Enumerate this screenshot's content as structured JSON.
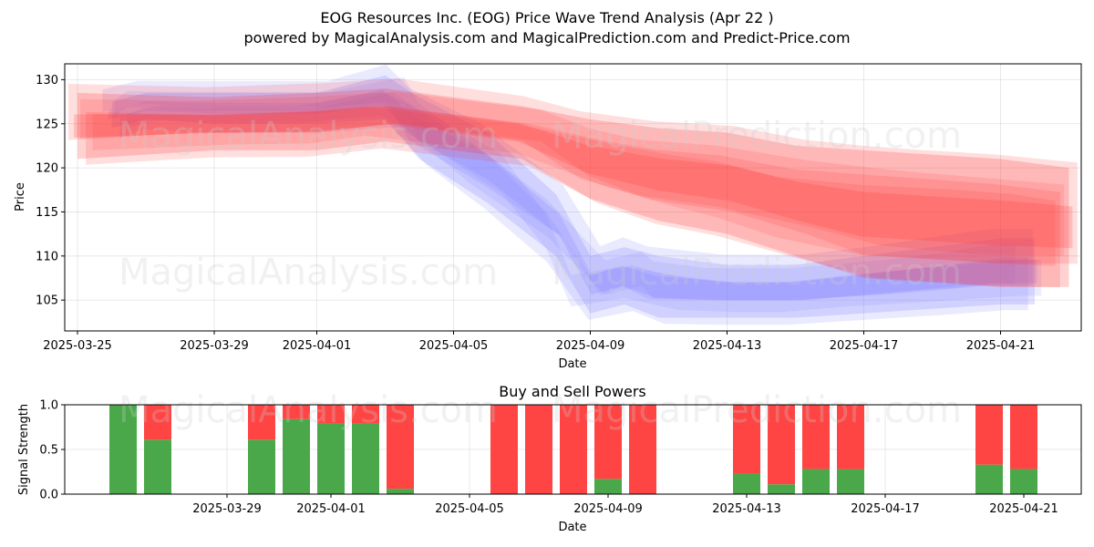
{
  "title": "EOG Resources Inc. (EOG) Price Wave Trend Analysis (Apr 22 )",
  "subtitle": "powered by MagicalAnalysis.com and MagicalPrediction.com and Predict-Price.com",
  "watermarks": [
    "MagicalAnalysis.com",
    "MagicalPrediction.com"
  ],
  "colors": {
    "buy": "#4aa84a",
    "sell": "#ff4444",
    "wave_blue": "#7b7bff",
    "wave_red": "#ff3030"
  },
  "chart_data": [
    {
      "type": "area",
      "xlabel": "Date",
      "ylabel": "Price",
      "ylim": [
        101.5,
        131.8
      ],
      "yticks": [
        105,
        110,
        115,
        120,
        125,
        130
      ],
      "xlim": [
        "2025-03-25",
        "2025-04-23"
      ],
      "xticks": [
        "2025-03-25",
        "2025-03-29",
        "2025-04-01",
        "2025-04-05",
        "2025-04-09",
        "2025-04-13",
        "2025-04-17",
        "2025-04-21"
      ],
      "grid": true,
      "series": [
        {
          "color": "blue",
          "x": [
            "2025-03-26",
            "2025-03-27",
            "2025-03-29",
            "2025-04-01",
            "2025-04-03",
            "2025-04-04",
            "2025-04-06",
            "2025-04-08",
            "2025-04-09",
            "2025-04-10",
            "2025-04-11",
            "2025-04-13",
            "2025-04-15",
            "2025-04-17",
            "2025-04-19",
            "2025-04-21",
            "2025-04-22"
          ],
          "lower": [
            124.5,
            125.5,
            125.0,
            125.0,
            125.5,
            121.0,
            116.0,
            110.0,
            103.5,
            104.5,
            103.0,
            103.0,
            103.0,
            103.5,
            104.0,
            104.5,
            104.5
          ],
          "upper": [
            127.5,
            128.5,
            128.5,
            128.5,
            130.5,
            128.0,
            124.0,
            117.0,
            110.0,
            111.0,
            110.0,
            109.0,
            109.0,
            110.0,
            111.0,
            112.0,
            112.0
          ]
        },
        {
          "color": "red",
          "x": [
            "2025-03-25",
            "2025-03-29",
            "2025-04-01",
            "2025-04-03",
            "2025-04-07",
            "2025-04-09",
            "2025-04-11",
            "2025-04-13",
            "2025-04-15",
            "2025-04-17",
            "2025-04-19",
            "2025-04-21",
            "2025-04-23"
          ],
          "lower": [
            121.0,
            122.0,
            122.0,
            123.0,
            121.0,
            116.5,
            114.0,
            112.5,
            110.0,
            107.5,
            107.0,
            106.5,
            106.5
          ],
          "upper": [
            128.5,
            128.0,
            128.5,
            129.0,
            127.0,
            125.5,
            124.5,
            124.0,
            122.5,
            122.0,
            121.5,
            121.0,
            120.0
          ]
        }
      ]
    },
    {
      "type": "bar",
      "title": "Buy and Sell Powers",
      "xlabel": "Date",
      "ylabel": "Signal Strength",
      "ylim": [
        0,
        1
      ],
      "yticks": [
        "0.0",
        "0.5",
        "1.0"
      ],
      "xlim": [
        "2025-03-25",
        "2025-04-23"
      ],
      "xticks": [
        "2025-03-29",
        "2025-04-01",
        "2025-04-05",
        "2025-04-09",
        "2025-04-13",
        "2025-04-17",
        "2025-04-21"
      ],
      "grid": true,
      "x": [
        "2025-03-26",
        "2025-03-27",
        "2025-03-30",
        "2025-03-31",
        "2025-04-01",
        "2025-04-02",
        "2025-04-03",
        "2025-04-06",
        "2025-04-07",
        "2025-04-08",
        "2025-04-09",
        "2025-04-10",
        "2025-04-13",
        "2025-04-14",
        "2025-04-15",
        "2025-04-16",
        "2025-04-20",
        "2025-04-21"
      ],
      "series": [
        {
          "name": "Buy",
          "values": [
            1.0,
            0.61,
            0.61,
            0.84,
            0.79,
            0.79,
            0.06,
            0.0,
            0.0,
            0.0,
            0.17,
            0.0,
            0.23,
            0.11,
            0.28,
            0.28,
            0.33,
            0.28
          ]
        },
        {
          "name": "Sell",
          "values": [
            0.0,
            0.39,
            0.39,
            0.16,
            0.21,
            0.21,
            0.94,
            1.0,
            1.0,
            1.0,
            0.83,
            1.0,
            0.77,
            0.89,
            0.72,
            0.72,
            0.67,
            0.72
          ]
        }
      ]
    }
  ]
}
